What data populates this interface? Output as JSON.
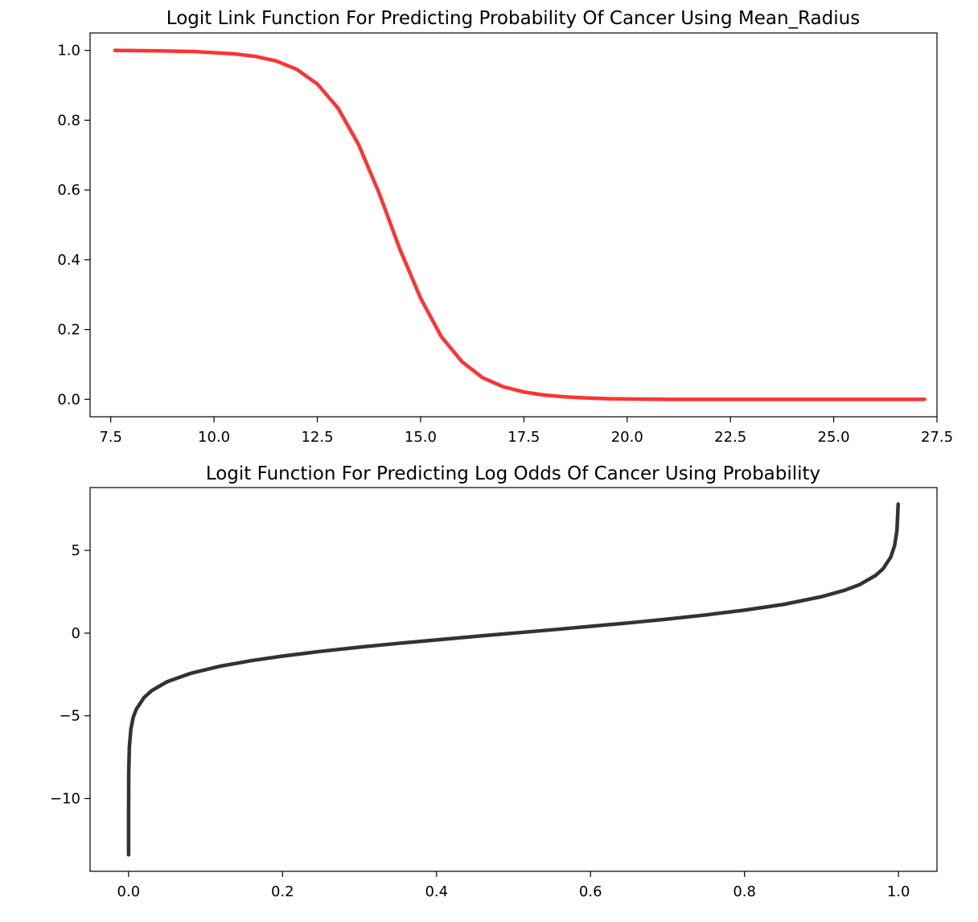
{
  "chart_data": [
    {
      "type": "line",
      "title": "Logit Link Function For Predicting Probability Of Cancer Using Mean_Radius",
      "xlabel": "",
      "ylabel": "",
      "xlim": [
        7.0,
        27.5
      ],
      "ylim": [
        -0.05,
        1.05
      ],
      "xticks": [
        7.5,
        10.0,
        12.5,
        15.0,
        17.5,
        20.0,
        22.5,
        25.0,
        27.5
      ],
      "xtick_labels": [
        "7.5",
        "10.0",
        "12.5",
        "15.0",
        "17.5",
        "20.0",
        "22.5",
        "25.0",
        "27.5"
      ],
      "yticks": [
        0.0,
        0.2,
        0.4,
        0.6,
        0.8,
        1.0
      ],
      "ytick_labels": [
        "0.0",
        "0.2",
        "0.4",
        "0.6",
        "0.8",
        "1.0"
      ],
      "grid": false,
      "line_color": "#ff3333",
      "series": [
        {
          "x": [
            7.6,
            8.5,
            9.5,
            10.5,
            11.0,
            11.5,
            12.0,
            12.5,
            13.0,
            13.5,
            14.0,
            14.5,
            15.0,
            15.5,
            16.0,
            16.5,
            17.0,
            17.5,
            18.0,
            18.5,
            19.0,
            19.5,
            20.0,
            21.0,
            22.0,
            23.0,
            24.0,
            25.0,
            26.0,
            27.2
          ],
          "y": [
            1.0,
            0.999,
            0.997,
            0.99,
            0.983,
            0.97,
            0.946,
            0.904,
            0.835,
            0.73,
            0.59,
            0.43,
            0.29,
            0.18,
            0.108,
            0.062,
            0.036,
            0.021,
            0.012,
            0.007,
            0.004,
            0.002,
            0.001,
            0.0,
            0.0,
            0.0,
            0.0,
            0.0,
            0.0,
            0.0
          ]
        }
      ]
    },
    {
      "type": "line",
      "title": "Logit Function For Predicting Log Odds Of Cancer Using Probability",
      "xlabel": "",
      "ylabel": "",
      "xlim": [
        -0.05,
        1.05
      ],
      "ylim": [
        -14.4,
        8.8
      ],
      "xticks": [
        0.0,
        0.2,
        0.4,
        0.6,
        0.8,
        1.0
      ],
      "xtick_labels": [
        "0.0",
        "0.2",
        "0.4",
        "0.6",
        "0.8",
        "1.0"
      ],
      "yticks": [
        5,
        0,
        -5,
        -10
      ],
      "ytick_labels": [
        "5",
        "0",
        "−5",
        "−10"
      ],
      "grid": false,
      "line_color": "#333333",
      "series": [
        {
          "x": [
            1.5e-06,
            2e-05,
            0.0002,
            0.001,
            0.003,
            0.006,
            0.01,
            0.02,
            0.03,
            0.05,
            0.08,
            0.12,
            0.16,
            0.2,
            0.25,
            0.3,
            0.35,
            0.4,
            0.45,
            0.5,
            0.55,
            0.6,
            0.65,
            0.7,
            0.75,
            0.8,
            0.85,
            0.9,
            0.93,
            0.95,
            0.97,
            0.98,
            0.99,
            0.995,
            0.998,
            0.9996
          ],
          "y": [
            -13.4,
            -10.8,
            -8.5,
            -6.9,
            -5.8,
            -5.1,
            -4.6,
            -3.9,
            -3.48,
            -2.94,
            -2.44,
            -1.99,
            -1.66,
            -1.39,
            -1.1,
            -0.85,
            -0.62,
            -0.41,
            -0.2,
            0.0,
            0.2,
            0.41,
            0.62,
            0.85,
            1.1,
            1.39,
            1.73,
            2.2,
            2.59,
            2.94,
            3.48,
            3.89,
            4.6,
            5.3,
            6.2,
            7.8
          ]
        }
      ]
    }
  ]
}
